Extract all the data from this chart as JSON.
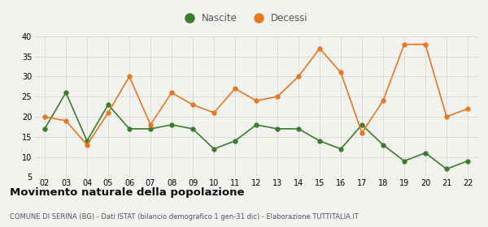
{
  "years": [
    2,
    3,
    4,
    5,
    6,
    7,
    8,
    9,
    10,
    11,
    12,
    13,
    14,
    15,
    16,
    17,
    18,
    19,
    20,
    21,
    22
  ],
  "nascite": [
    17,
    26,
    14,
    23,
    17,
    17,
    18,
    17,
    12,
    14,
    18,
    17,
    17,
    14,
    12,
    18,
    13,
    9,
    11,
    7,
    9
  ],
  "decessi": [
    20,
    19,
    13,
    21,
    30,
    18,
    26,
    23,
    21,
    27,
    24,
    25,
    30,
    37,
    31,
    16,
    24,
    38,
    38,
    20,
    22
  ],
  "nascite_color": "#3a7d2c",
  "decessi_color": "#e87722",
  "ylim": [
    5,
    40
  ],
  "yticks": [
    5,
    10,
    15,
    20,
    25,
    30,
    35,
    40
  ],
  "title": "Movimento naturale della popolazione",
  "subtitle": "COMUNE DI SERINA (BG) - Dati ISTAT (bilancio demografico 1 gen-31 dic) - Elaborazione TUTTITALIA.IT",
  "legend_nascite": "Nascite",
  "legend_decessi": "Decessi",
  "bg_color": "#f2f2ee",
  "grid_color": "#d8d8d8"
}
